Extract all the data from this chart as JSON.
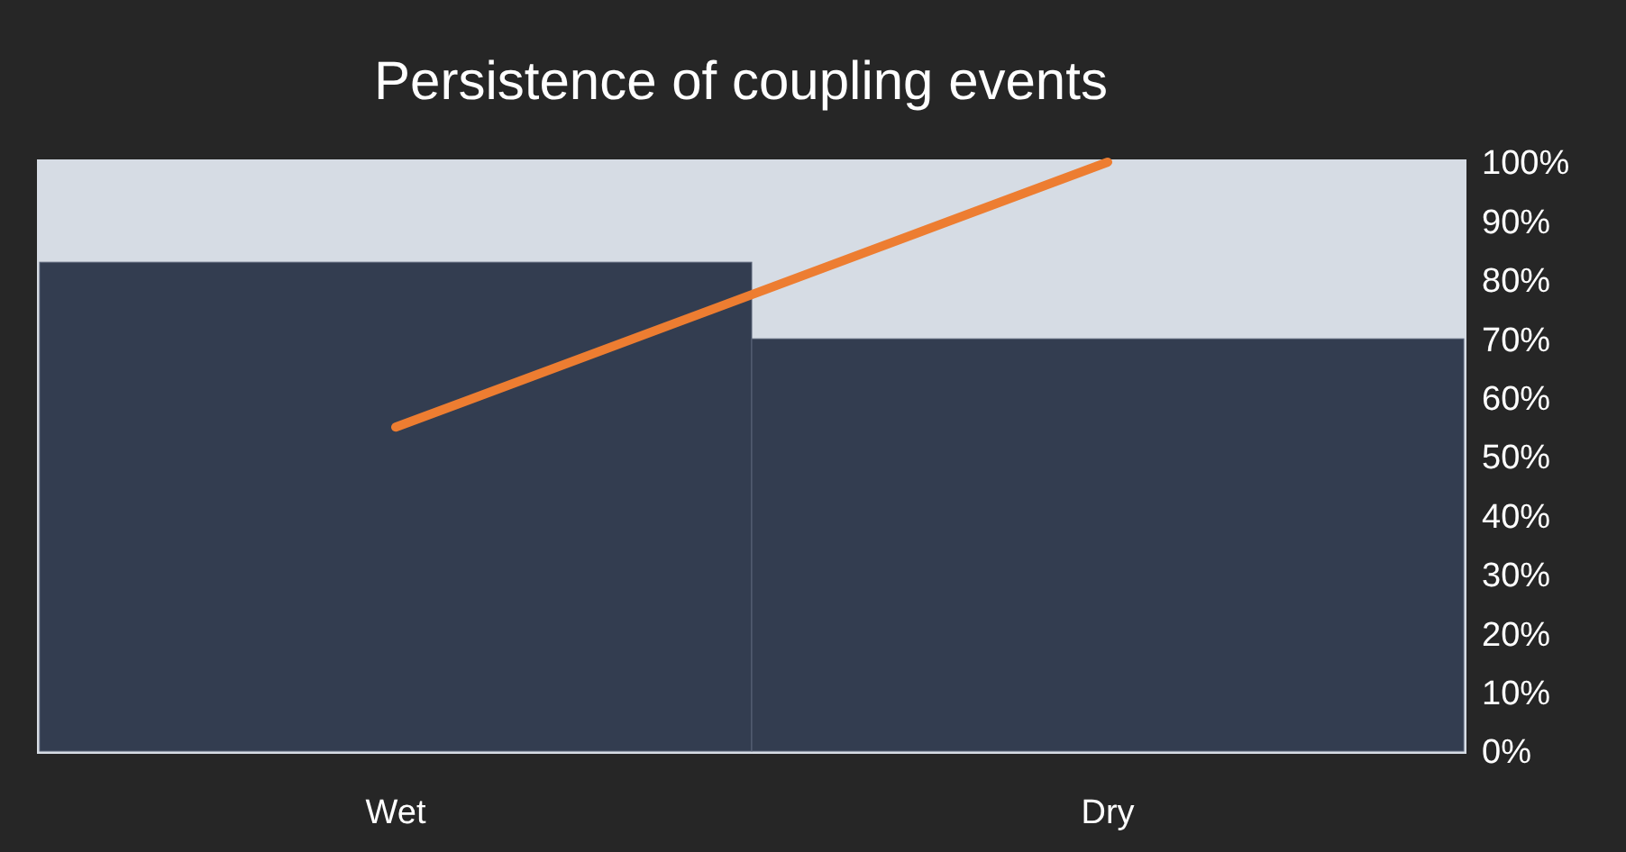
{
  "chart_data": {
    "type": "bar",
    "title": "Persistence of coupling events",
    "categories": [
      "Wet",
      "Dry"
    ],
    "series": [
      {
        "color": "#333d50",
        "values": [
          83,
          70
        ]
      },
      {
        "type": "line",
        "color": "#ed7d31",
        "values": [
          55,
          100
        ]
      }
    ],
    "ylim": [
      0,
      100
    ],
    "yticks": [
      {
        "value": 0,
        "label": "0%"
      },
      {
        "value": 10,
        "label": "10%"
      },
      {
        "value": 20,
        "label": "20%"
      },
      {
        "value": 30,
        "label": "30%"
      },
      {
        "value": 40,
        "label": "40%"
      },
      {
        "value": 50,
        "label": "50%"
      },
      {
        "value": 60,
        "label": "60%"
      },
      {
        "value": 70,
        "label": "70%"
      },
      {
        "value": 80,
        "label": "80%"
      },
      {
        "value": 90,
        "label": "90%"
      },
      {
        "value": 100,
        "label": "100%"
      }
    ]
  }
}
